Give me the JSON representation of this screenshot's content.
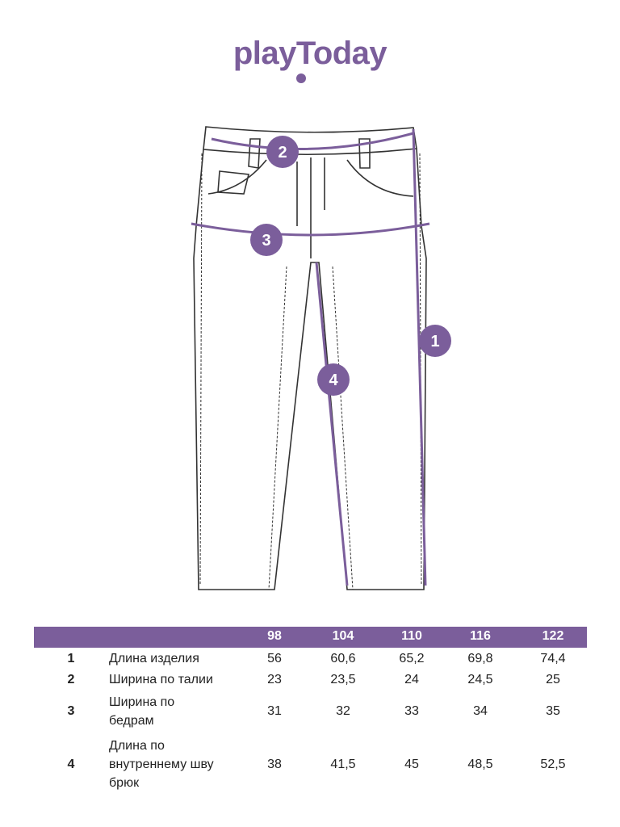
{
  "brand": {
    "logo_text": "playToday",
    "accent_color": "#7b5e9b"
  },
  "diagram": {
    "markers": [
      "1",
      "2",
      "3",
      "4"
    ]
  },
  "table": {
    "header": [
      "",
      "",
      "98",
      "104",
      "110",
      "116",
      "122"
    ],
    "rows": [
      {
        "num": "1",
        "label": [
          "Длина изделия"
        ],
        "values": [
          "56",
          "60,6",
          "65,2",
          "69,8",
          "74,4"
        ]
      },
      {
        "num": "2",
        "label": [
          "Ширина по талии"
        ],
        "values": [
          "23",
          "23,5",
          "24",
          "24,5",
          "25"
        ]
      },
      {
        "num": "3",
        "label": [
          "Ширина по",
          "бедрам"
        ],
        "values": [
          "31",
          "32",
          "33",
          "34",
          "35"
        ]
      },
      {
        "num": "4",
        "label": [
          "Длина по",
          "внутреннему шву",
          "брюк"
        ],
        "values": [
          "38",
          "41,5",
          "45",
          "48,5",
          "52,5"
        ]
      }
    ]
  }
}
